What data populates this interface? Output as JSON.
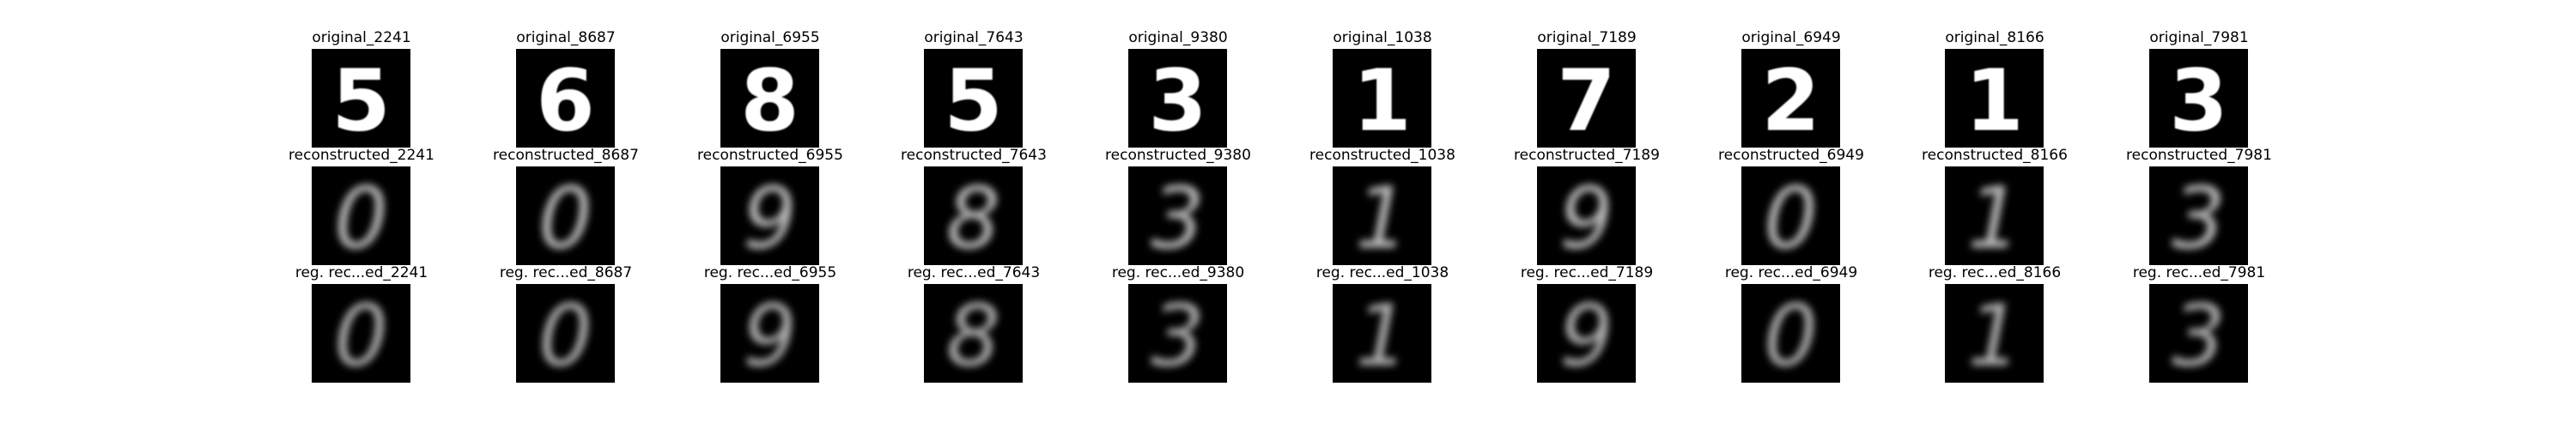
{
  "figure": {
    "rows": [
      {
        "kind": "original",
        "titles": [
          "original_2241",
          "original_8687",
          "original_6955",
          "original_7643",
          "original_9380",
          "original_1038",
          "original_7189",
          "original_6949",
          "original_8166",
          "original_7981"
        ]
      },
      {
        "kind": "reconstructed",
        "titles": [
          "reconstructed_2241",
          "reconstructed_8687",
          "reconstructed_6955",
          "reconstructed_7643",
          "reconstructed_9380",
          "reconstructed_1038",
          "reconstructed_7189",
          "reconstructed_6949",
          "reconstructed_8166",
          "reconstructed_7981"
        ]
      },
      {
        "kind": "regularized",
        "titles": [
          "reg. rec...ed_2241",
          "reg. rec...ed_8687",
          "reg. rec...ed_6955",
          "reg. rec...ed_7643",
          "reg. rec...ed_9380",
          "reg. rec...ed_1038",
          "reg. rec...ed_7189",
          "reg. rec...ed_6949",
          "reg. rec...ed_8166",
          "reg. rec...ed_7981"
        ]
      }
    ],
    "images": {
      "original_digits": [
        "5",
        "6",
        "8",
        "5",
        "3",
        "1",
        "7",
        "2",
        "1",
        "3"
      ],
      "reconstructed_shapes": [
        "0",
        "0",
        "9",
        "8",
        "3",
        "1",
        "9",
        "0",
        "1",
        "3"
      ]
    }
  }
}
